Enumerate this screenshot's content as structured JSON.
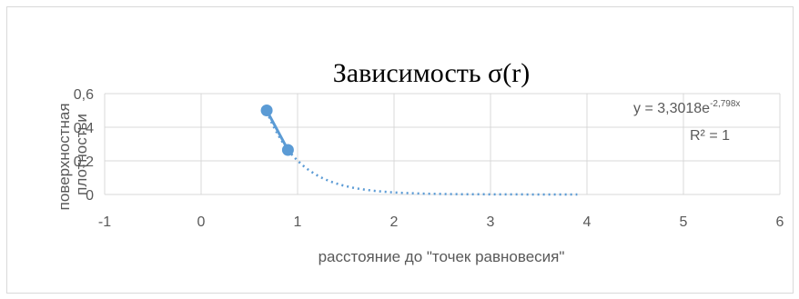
{
  "chart_data": {
    "type": "scatter",
    "title": "Зависимость σ(r)",
    "xlabel": "расстояние до \"точек равновесия\"",
    "ylabel_lines": [
      "поверхностная",
      "плотностьи"
    ],
    "xlim": [
      -1,
      6
    ],
    "ylim": [
      0,
      0.6
    ],
    "x_ticks": [
      -1,
      0,
      1,
      2,
      3,
      4,
      5,
      6
    ],
    "y_ticks": [
      0,
      0.2,
      0.4,
      0.6
    ],
    "x_tick_labels": [
      "-1",
      "0",
      "1",
      "2",
      "3",
      "4",
      "5",
      "6"
    ],
    "y_tick_labels": [
      "0",
      "0,2",
      "0,4",
      "0,6"
    ],
    "grid": true,
    "series": [
      {
        "x": [
          0.68,
          0.9
        ],
        "y": [
          0.5,
          0.265
        ],
        "color": "#5b9bd5"
      }
    ],
    "trendline": {
      "type": "exponential",
      "a": 3.3018,
      "b": -2.798,
      "x_range": [
        0.68,
        3.9
      ],
      "color": "#5b9bd5",
      "equation_main": "y = 3,3018e",
      "equation_exp": "-2,798x",
      "r_squared": "R² = 1"
    }
  }
}
